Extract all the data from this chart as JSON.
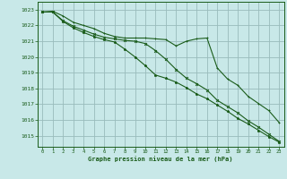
{
  "bg_color": "#c8e8e8",
  "grid_color": "#99bbbb",
  "line_color": "#1a5c1a",
  "text_color": "#1a5c1a",
  "xlabel": "Graphe pression niveau de la mer (hPa)",
  "xlim": [
    -0.5,
    23.5
  ],
  "ylim": [
    1014.3,
    1023.5
  ],
  "yticks": [
    1015,
    1016,
    1017,
    1018,
    1019,
    1020,
    1021,
    1022,
    1023
  ],
  "xticks": [
    0,
    1,
    2,
    3,
    4,
    5,
    6,
    7,
    8,
    9,
    10,
    11,
    12,
    13,
    14,
    15,
    16,
    17,
    18,
    19,
    20,
    21,
    22,
    23
  ],
  "series1_x": [
    0,
    1,
    2,
    3,
    4,
    5,
    6,
    7,
    8,
    9,
    10,
    11,
    12,
    13,
    14,
    15,
    16,
    17,
    18,
    19,
    20,
    21,
    22,
    23
  ],
  "series1_y": [
    1022.85,
    1022.9,
    1022.6,
    1022.2,
    1022.0,
    1021.8,
    1021.5,
    1021.3,
    1021.2,
    1021.2,
    1021.2,
    1021.15,
    1021.1,
    1020.7,
    1021.0,
    1021.15,
    1021.2,
    1019.3,
    1018.6,
    1018.2,
    1017.5,
    1017.05,
    1016.6,
    1015.85
  ],
  "series2_x": [
    0,
    1,
    2,
    3,
    4,
    5,
    6,
    7,
    8,
    9,
    10,
    11,
    12,
    13,
    14,
    15,
    16,
    17,
    18,
    19,
    20,
    21,
    22,
    23
  ],
  "series2_y": [
    1022.85,
    1022.85,
    1022.3,
    1021.95,
    1021.7,
    1021.45,
    1021.25,
    1021.15,
    1021.05,
    1021.0,
    1020.85,
    1020.4,
    1019.85,
    1019.2,
    1018.65,
    1018.3,
    1017.9,
    1017.25,
    1016.85,
    1016.45,
    1015.95,
    1015.55,
    1015.1,
    1014.65
  ],
  "series3_x": [
    0,
    1,
    2,
    3,
    4,
    5,
    6,
    7,
    8,
    9,
    10,
    11,
    12,
    13,
    14,
    15,
    16,
    17,
    18,
    19,
    20,
    21,
    22,
    23
  ],
  "series3_y": [
    1022.85,
    1022.85,
    1022.25,
    1021.85,
    1021.55,
    1021.3,
    1021.1,
    1020.95,
    1020.5,
    1020.0,
    1019.45,
    1018.85,
    1018.65,
    1018.4,
    1018.05,
    1017.65,
    1017.35,
    1016.95,
    1016.55,
    1016.1,
    1015.75,
    1015.35,
    1014.95,
    1014.6
  ]
}
